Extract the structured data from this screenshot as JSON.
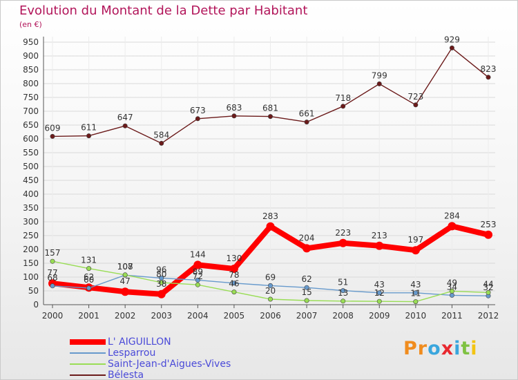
{
  "header": {
    "title": "Evolution du Montant de la Dette par Habitant",
    "subtitle": "(en €)"
  },
  "colors": {
    "title": "#b2155a",
    "legend_text": "#4a4ad8",
    "grid": "#d9d9d9"
  },
  "brand": {
    "logo_text": "Proxiti"
  },
  "chart_data": {
    "type": "line",
    "title": "Evolution du Montant de la Dette par Habitant",
    "subtitle": "(en €)",
    "xlabel": "",
    "ylabel": "",
    "ylim": [
      0,
      950
    ],
    "yticks": [
      0,
      50,
      100,
      150,
      200,
      250,
      300,
      350,
      400,
      450,
      500,
      550,
      600,
      650,
      700,
      750,
      800,
      850,
      900,
      950
    ],
    "grid": true,
    "legend_position": "bottom-left",
    "x": [
      "2000",
      "2001",
      "2002",
      "2003",
      "2004",
      "2005",
      "2006",
      "2007",
      "2008",
      "2009",
      "2010",
      "2011",
      "2012"
    ],
    "series": [
      {
        "name": "L' AIGUILLON",
        "color": "#ff0000",
        "values": [
          77,
          62,
          47,
          38,
          144,
          130,
          283,
          204,
          223,
          213,
          197,
          284,
          253
        ]
      },
      {
        "name": "Lesparrou",
        "color": "#6699cc",
        "values": [
          68,
          60,
          107,
          96,
          89,
          78,
          69,
          62,
          51,
          43,
          43,
          34,
          32
        ]
      },
      {
        "name": "Saint-Jean-d'Aigues-Vives",
        "color": "#99dd55",
        "values": [
          157,
          131,
          108,
          80,
          72,
          46,
          20,
          15,
          13,
          12,
          11,
          49,
          44
        ]
      },
      {
        "name": "Bélesta",
        "color": "#6b1a1a",
        "values": [
          609,
          611,
          647,
          584,
          673,
          683,
          681,
          661,
          718,
          799,
          723,
          929,
          823
        ]
      }
    ]
  }
}
